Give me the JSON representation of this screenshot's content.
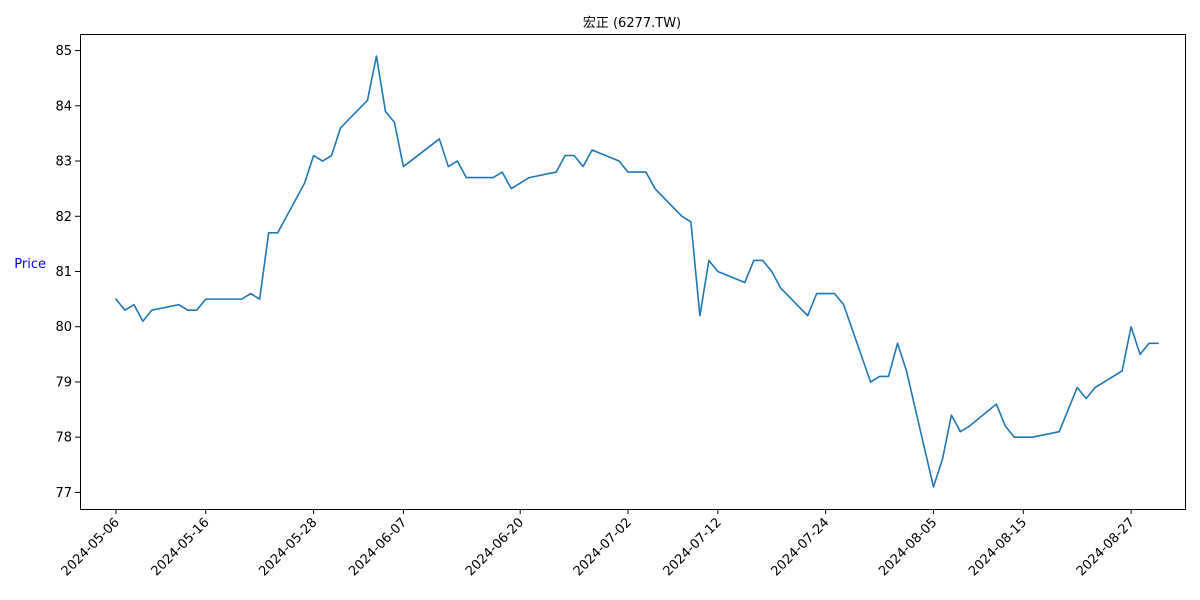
{
  "chart_data": {
    "type": "line",
    "title": "宏正 (6277.TW)",
    "ylabel": "Price",
    "xlabel": "",
    "ylabel_color": "#0000ff",
    "line_color": "#1f77b4",
    "grid": false,
    "ylim": [
      76.7,
      85.3
    ],
    "xlim": [
      "2024-05-02",
      "2024-09-02"
    ],
    "y_ticks": [
      77,
      78,
      79,
      80,
      81,
      82,
      83,
      84,
      85
    ],
    "x_ticks": [
      "2024-05-06",
      "2024-05-16",
      "2024-05-28",
      "2024-06-07",
      "2024-06-20",
      "2024-07-02",
      "2024-07-12",
      "2024-07-24",
      "2024-08-05",
      "2024-08-15",
      "2024-08-27"
    ],
    "series": [
      {
        "x": [
          "2024-05-06",
          "2024-05-07",
          "2024-05-08",
          "2024-05-09",
          "2024-05-10",
          "2024-05-13",
          "2024-05-14",
          "2024-05-15",
          "2024-05-16",
          "2024-05-17",
          "2024-05-20",
          "2024-05-21",
          "2024-05-22",
          "2024-05-23",
          "2024-05-24",
          "2024-05-27",
          "2024-05-28",
          "2024-05-29",
          "2024-05-30",
          "2024-05-31",
          "2024-06-03",
          "2024-06-04",
          "2024-06-05",
          "2024-06-06",
          "2024-06-07",
          "2024-06-11",
          "2024-06-12",
          "2024-06-13",
          "2024-06-14",
          "2024-06-17",
          "2024-06-18",
          "2024-06-19",
          "2024-06-21",
          "2024-06-24",
          "2024-06-25",
          "2024-06-26",
          "2024-06-27",
          "2024-06-28",
          "2024-07-01",
          "2024-07-02",
          "2024-07-03",
          "2024-07-04",
          "2024-07-05",
          "2024-07-08",
          "2024-07-09",
          "2024-07-10",
          "2024-07-11",
          "2024-07-12",
          "2024-07-15",
          "2024-07-16",
          "2024-07-17",
          "2024-07-18",
          "2024-07-19",
          "2024-07-22",
          "2024-07-23",
          "2024-07-24",
          "2024-07-25",
          "2024-07-26",
          "2024-07-29",
          "2024-07-30",
          "2024-07-31",
          "2024-08-01",
          "2024-08-02",
          "2024-08-05",
          "2024-08-06",
          "2024-08-07",
          "2024-08-08",
          "2024-08-09",
          "2024-08-12",
          "2024-08-13",
          "2024-08-14",
          "2024-08-15",
          "2024-08-16",
          "2024-08-19",
          "2024-08-20",
          "2024-08-21",
          "2024-08-22",
          "2024-08-23",
          "2024-08-26",
          "2024-08-27",
          "2024-08-28",
          "2024-08-29",
          "2024-08-30"
        ],
        "values": [
          80.5,
          80.3,
          80.4,
          80.1,
          80.3,
          80.4,
          80.3,
          80.3,
          80.5,
          80.5,
          80.5,
          80.6,
          80.5,
          81.7,
          81.7,
          82.6,
          83.1,
          83.0,
          83.1,
          83.6,
          84.1,
          84.9,
          83.9,
          83.7,
          82.9,
          83.4,
          82.9,
          83.0,
          82.7,
          82.7,
          82.8,
          82.5,
          82.7,
          82.8,
          83.1,
          83.1,
          82.9,
          83.2,
          83.0,
          82.8,
          82.8,
          82.8,
          82.5,
          82.0,
          81.9,
          80.2,
          81.2,
          81.0,
          80.8,
          81.2,
          81.2,
          81.0,
          80.7,
          80.2,
          80.6,
          80.6,
          80.6,
          80.4,
          79.0,
          79.1,
          79.1,
          79.7,
          79.2,
          77.1,
          77.6,
          78.4,
          78.1,
          78.2,
          78.6,
          78.2,
          78.0,
          78.0,
          78.0,
          78.1,
          78.5,
          78.9,
          78.7,
          78.9,
          79.2,
          80.0,
          79.5,
          79.7,
          79.7
        ]
      }
    ]
  }
}
